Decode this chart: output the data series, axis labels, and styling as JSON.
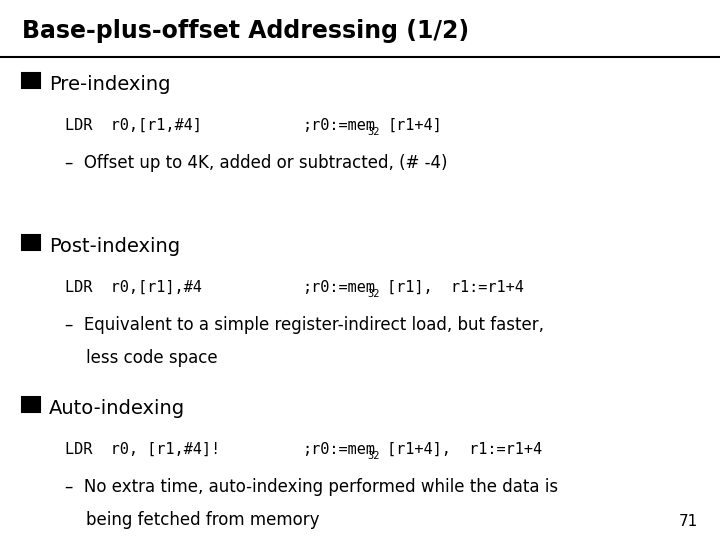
{
  "title": "Base-plus-offset Addressing (1/2)",
  "bg_color": "#ffffff",
  "title_color": "#000000",
  "text_color": "#000000",
  "page_number": "71",
  "sections": [
    {
      "heading": "Pre-indexing",
      "code_line": "LDR  r0,[r1,#4]",
      "comment_prefix": ";r0:=mem",
      "comment_sub": "32",
      "comment_suffix": "[r1+4]",
      "bullet": "Offset up to 4K, added or subtracted, (# -4)"
    },
    {
      "heading": "Post-indexing",
      "code_line": "LDR  r0,[r1],#4",
      "comment_prefix": ";r0:=mem",
      "comment_sub": "32",
      "comment_suffix": "[r1],  r1:=r1+4",
      "bullet": "Equivalent to a simple register-indirect load, but faster,\nless code space"
    },
    {
      "heading": "Auto-indexing",
      "code_line": "LDR  r0, [r1,#4]!",
      "comment_prefix": ";r0:=mem",
      "comment_sub": "32",
      "comment_suffix": "[r1+4],  r1:=r1+4",
      "bullet": "No extra time, auto-indexing performed while the data is\nbeing fetched from memory"
    }
  ]
}
